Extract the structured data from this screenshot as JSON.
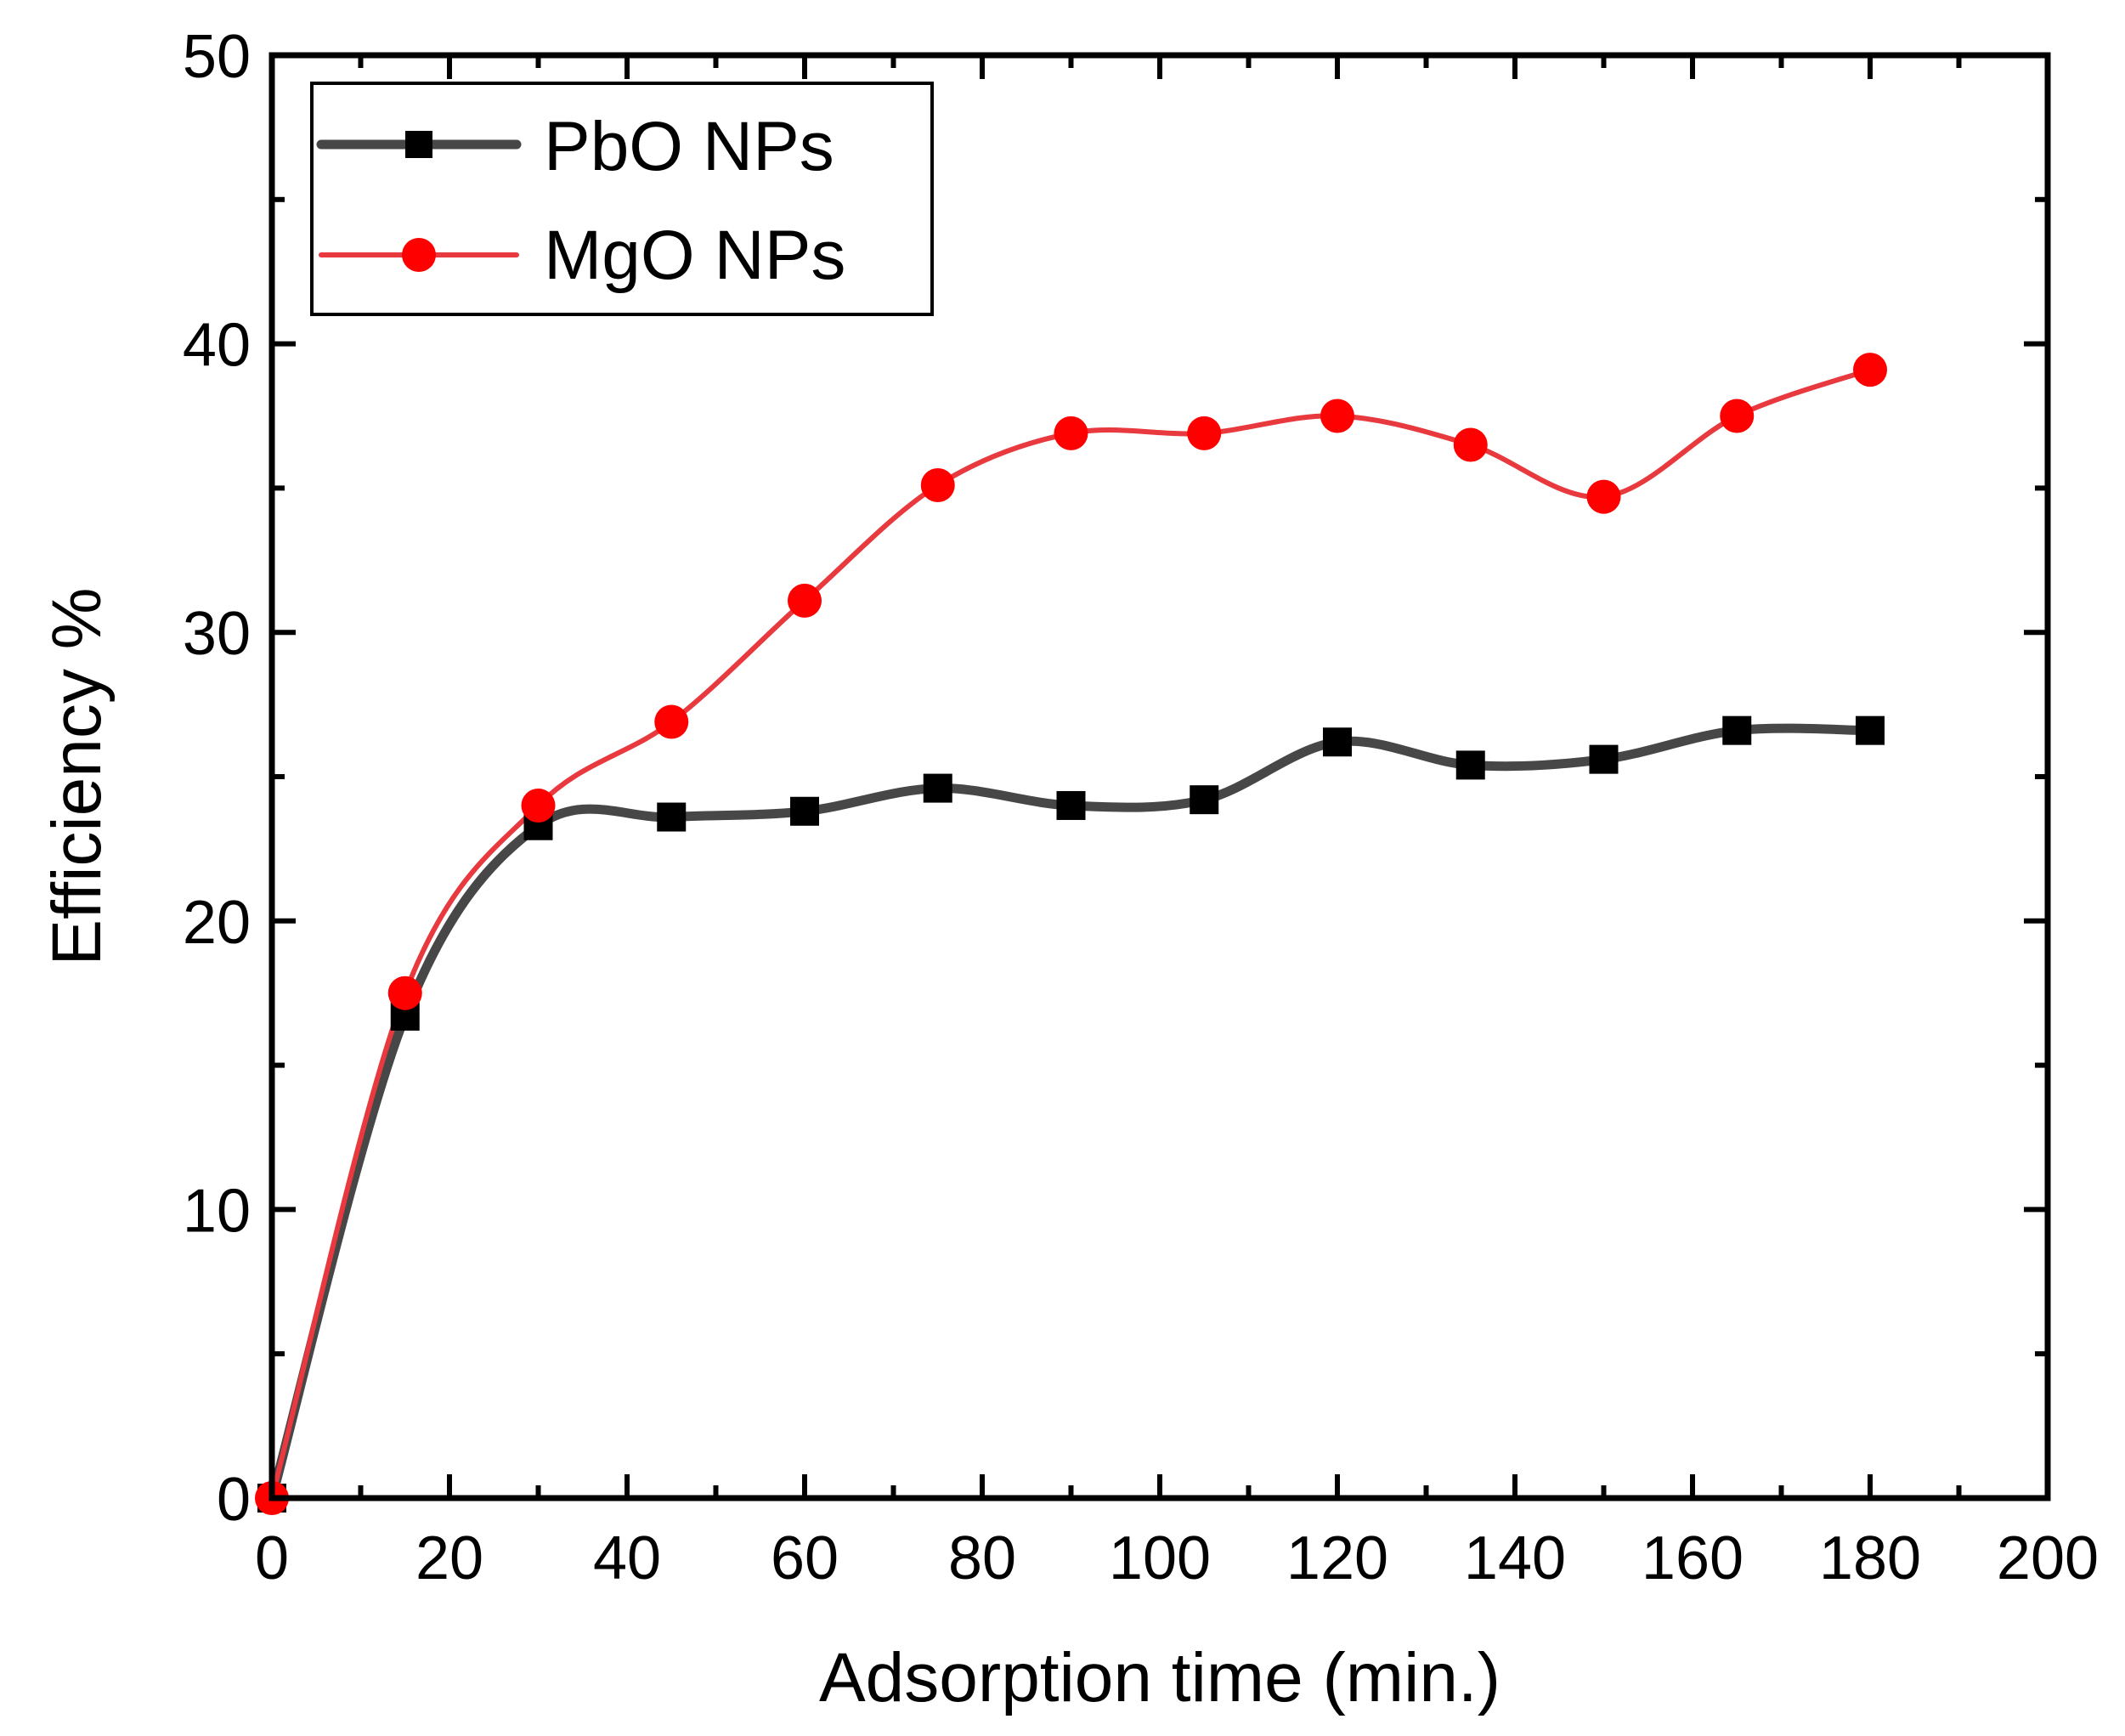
{
  "chart_data": {
    "type": "line",
    "title": "",
    "xlabel": "Adsorption time (min.)",
    "ylabel": "Efficiency %",
    "xlim": [
      0,
      200
    ],
    "ylim": [
      0,
      50
    ],
    "xticks": [
      0,
      20,
      40,
      60,
      80,
      100,
      120,
      140,
      160,
      180,
      200
    ],
    "yticks": [
      0,
      10,
      20,
      30,
      40,
      50
    ],
    "x": [
      0,
      15,
      30,
      45,
      60,
      75,
      90,
      105,
      120,
      135,
      150,
      165,
      180
    ],
    "series": [
      {
        "name": "PbO NPs",
        "color": "#474747",
        "marker": "square",
        "values": [
          0,
          16.7,
          23.3,
          23.6,
          23.8,
          24.6,
          24.0,
          24.2,
          26.2,
          25.4,
          25.6,
          26.6,
          26.6
        ]
      },
      {
        "name": "MgO NPs",
        "color": "#e8393e",
        "marker_color": "#ff0000",
        "marker": "circle",
        "values": [
          0,
          17.5,
          24.0,
          26.9,
          31.1,
          35.1,
          36.9,
          36.9,
          37.5,
          36.5,
          34.7,
          37.5,
          39.1
        ]
      }
    ],
    "legend": "top-left",
    "grid": false
  }
}
